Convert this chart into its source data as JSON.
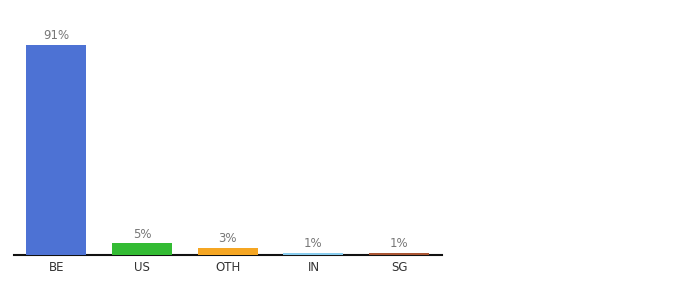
{
  "categories": [
    "BE",
    "US",
    "OTH",
    "IN",
    "SG"
  ],
  "values": [
    91,
    5,
    3,
    1,
    1
  ],
  "bar_colors": [
    "#4d72d4",
    "#33bb33",
    "#f5a623",
    "#88ccee",
    "#aa5533"
  ],
  "ylim": [
    0,
    100
  ],
  "background_color": "#ffffff",
  "label_fontsize": 8.5,
  "tick_fontsize": 8.5,
  "bar_width": 0.7,
  "label_color": "#777777"
}
